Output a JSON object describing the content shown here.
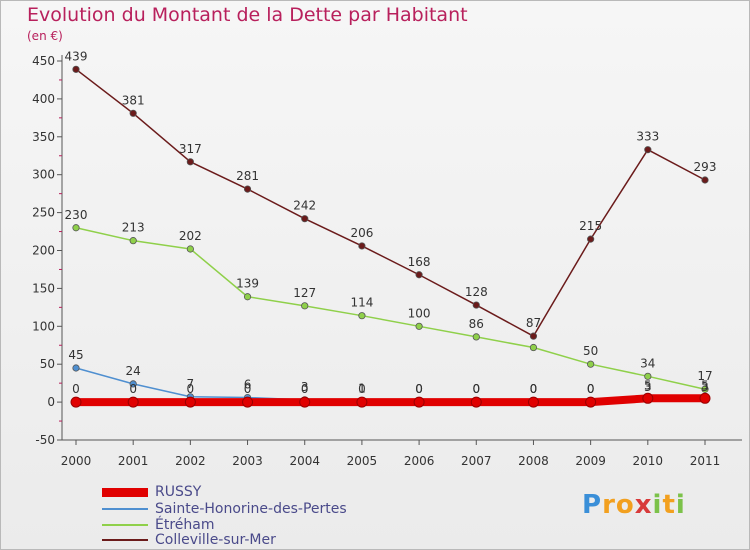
{
  "title": "Evolution du Montant de la Dette par Habitant",
  "unit": "(en €)",
  "chart_data": {
    "type": "line",
    "title": "Evolution du Montant de la Dette par Habitant",
    "ylabel": "(en €)",
    "xlabel": "",
    "x": [
      "2000",
      "2001",
      "2002",
      "2003",
      "2004",
      "2005",
      "2006",
      "2007",
      "2008",
      "2009",
      "2010",
      "2011"
    ],
    "ylim": [
      -50,
      450
    ],
    "yticks": [
      "-50",
      "0",
      "50",
      "100",
      "150",
      "200",
      "250",
      "300",
      "350",
      "400",
      "450"
    ],
    "grid": false,
    "legend_position": "bottom-left",
    "series": [
      {
        "name": "RUSSY",
        "color": "#e00000",
        "values": [
          0,
          0,
          0,
          0,
          0,
          0,
          0,
          0,
          0,
          0,
          5,
          5
        ],
        "labels": [
          "0",
          "0",
          "0",
          "0",
          "0",
          "0",
          "0",
          "0",
          "0",
          "0",
          "5",
          "5"
        ]
      },
      {
        "name": "Sainte-Honorine-des-Pertes",
        "color": "#4f8fd0",
        "values": [
          45,
          24,
          7,
          6,
          3,
          1,
          0,
          0,
          0,
          0,
          3,
          3
        ],
        "labels": [
          "45",
          "24",
          "7",
          "6",
          "3",
          "1",
          "0",
          "0",
          "0",
          "0",
          "3",
          "3"
        ]
      },
      {
        "name": "Étréham",
        "color": "#8fd04a",
        "values": [
          230,
          213,
          202,
          139,
          127,
          114,
          100,
          86,
          72,
          50,
          34,
          17
        ],
        "labels": [
          "230",
          "213",
          "202",
          "139",
          "127",
          "114",
          "100",
          "86",
          "",
          "50",
          "34",
          "17"
        ]
      },
      {
        "name": "Colleville-sur-Mer",
        "color": "#6b1b1b",
        "values": [
          439,
          381,
          317,
          281,
          242,
          206,
          168,
          128,
          87,
          215,
          333,
          293
        ],
        "labels": [
          "439",
          "381",
          "317",
          "281",
          "242",
          "206",
          "168",
          "128",
          "87",
          "215",
          "333",
          "293"
        ]
      }
    ]
  },
  "legend": [
    {
      "label": "RUSSY",
      "color": "#e00000"
    },
    {
      "label": "Sainte-Honorine-des-Pertes",
      "color": "#4f8fd0"
    },
    {
      "label": "Étréham",
      "color": "#8fd04a"
    },
    {
      "label": "Colleville-sur-Mer",
      "color": "#6b1b1b"
    }
  ],
  "logo": {
    "text": "Proxiti",
    "letters": [
      "P",
      "r",
      "o",
      "x",
      "i",
      "t",
      "i"
    ],
    "colors": [
      "#3a8fd8",
      "#f2a01f",
      "#f2a01f",
      "#d83a3a",
      "#7cc24a",
      "#f2a01f",
      "#7cc24a"
    ]
  }
}
